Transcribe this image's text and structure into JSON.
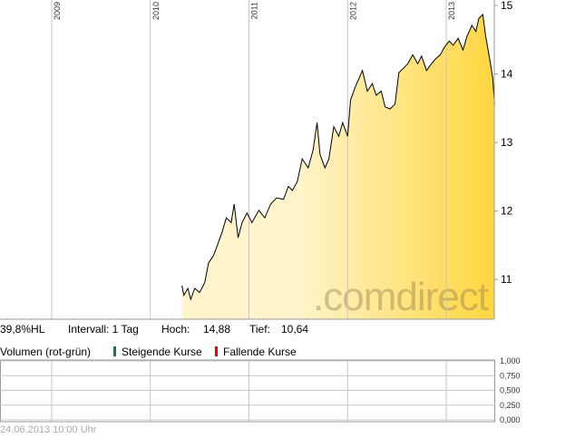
{
  "chart_data": {
    "type": "area",
    "x": [
      2010.32,
      2010.34,
      2010.38,
      2010.41,
      2010.45,
      2010.5,
      2010.55,
      2010.59,
      2010.64,
      2010.68,
      2010.73,
      2010.77,
      2010.82,
      2010.85,
      2010.89,
      2010.93,
      2010.98,
      2011.03,
      2011.1,
      2011.16,
      2011.22,
      2011.28,
      2011.35,
      2011.4,
      2011.44,
      2011.49,
      2011.54,
      2011.6,
      2011.65,
      2011.69,
      2011.72,
      2011.77,
      2011.81,
      2011.86,
      2011.91,
      2011.95,
      2012.0,
      2012.03,
      2012.08,
      2012.12,
      2012.15,
      2012.2,
      2012.25,
      2012.29,
      2012.34,
      2012.38,
      2012.43,
      2012.48,
      2012.52,
      2012.57,
      2012.61,
      2012.66,
      2012.71,
      2012.75,
      2012.8,
      2012.84,
      2012.89,
      2012.94,
      2012.98,
      2013.03,
      2013.07,
      2013.12,
      2013.17,
      2013.21,
      2013.26,
      2013.3,
      2013.33,
      2013.37,
      2013.4,
      2013.44,
      2013.47,
      2013.49
    ],
    "series": [
      {
        "color": "#000000",
        "fill_start": "#fff4cc",
        "fill_end": "#ffd640",
        "values": [
          10.91,
          10.77,
          10.87,
          10.71,
          10.87,
          10.81,
          10.95,
          11.24,
          11.35,
          11.5,
          11.7,
          11.9,
          11.83,
          12.1,
          11.61,
          11.83,
          11.97,
          11.83,
          12.01,
          11.9,
          12.1,
          12.19,
          12.17,
          12.36,
          12.3,
          12.43,
          12.76,
          12.63,
          12.89,
          13.29,
          12.83,
          12.63,
          12.76,
          13.23,
          13.09,
          13.29,
          13.09,
          13.62,
          13.82,
          13.95,
          14.05,
          13.75,
          13.86,
          13.69,
          13.75,
          13.52,
          13.49,
          13.56,
          14.02,
          14.09,
          14.15,
          14.28,
          14.15,
          14.26,
          14.05,
          14.13,
          14.22,
          14.28,
          14.39,
          14.48,
          14.42,
          14.52,
          14.35,
          14.55,
          14.71,
          14.62,
          14.81,
          14.87,
          14.55,
          14.22,
          13.95,
          13.56
        ]
      }
    ],
    "xlim": [
      2008.476,
      2013.487
    ],
    "xticks": [
      2009,
      2010,
      2011,
      2012,
      2013
    ],
    "ylim": [
      10.42,
      15.08
    ],
    "yticks": [
      11,
      12,
      13,
      14,
      15
    ],
    "grid": true,
    "watermark": ".comdirect",
    "info": [
      "39,8%HL",
      "Intervall: 1 Tag",
      "Hoch:",
      "14,88",
      "Tief:",
      "10,64"
    ],
    "volume": {
      "title": "Volumen (rot-grün)",
      "legend": [
        {
          "name": "Steigende Kurse",
          "color": "#1a7a3a"
        },
        {
          "name": "Fallende Kurse",
          "color": "#cc1111"
        }
      ],
      "ylim": [
        0,
        1
      ],
      "yticks": [
        {
          "value": 0,
          "label": "0,000"
        },
        {
          "value": 0.25,
          "label": "0,250"
        },
        {
          "value": 0.5,
          "label": "0,500"
        },
        {
          "value": 0.75,
          "label": "0,750"
        },
        {
          "value": 1,
          "label": "1,000"
        }
      ]
    },
    "timestamp": "24.06.2013 10:00 Uhr"
  }
}
